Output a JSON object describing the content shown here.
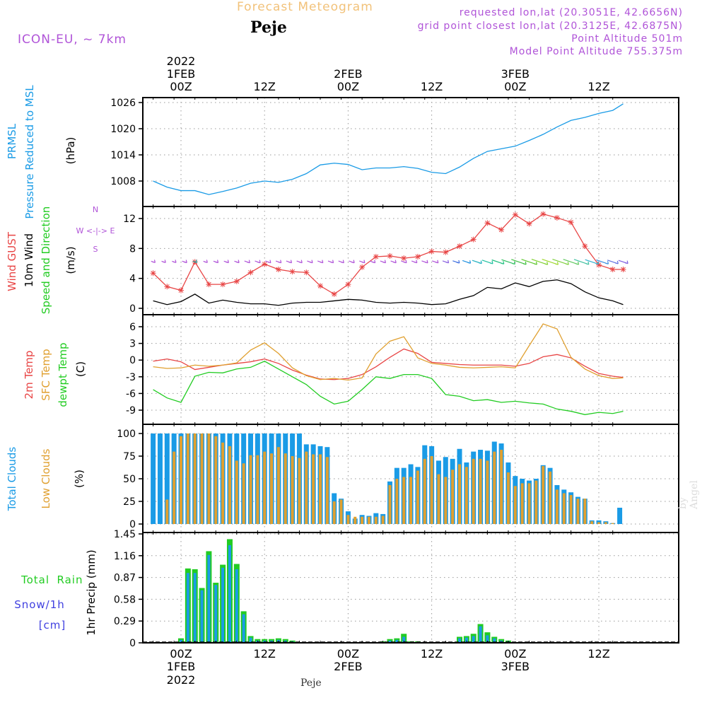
{
  "header": {
    "title": "Forecast Meteogram",
    "station": "Peje",
    "model": "ICON-EU, ~ 7km",
    "requested": "requested lon,lat (20.3051E, 42.6656N)",
    "gridpoint": "grid point closest lon,lat (20.3125E, 42.6875N)",
    "point_alt": "Point Altitude 501m",
    "model_alt": "Model Point Altitude 755.375m",
    "footer_station": "Peje",
    "watermark": "by Angel"
  },
  "time_axis": {
    "ticks": [
      "00Z",
      "12Z",
      "00Z",
      "12Z",
      "00Z",
      "12Z"
    ],
    "dates": [
      "1FEB",
      "2FEB",
      "3FEB"
    ],
    "year": "2022"
  },
  "colors": {
    "blue": "#1a9be6",
    "red": "#e84545",
    "orange": "#e0a030",
    "green": "#22cc22",
    "purple": "#b054d8",
    "snow": "#4040e0",
    "black": "#000000"
  },
  "chart_data": [
    {
      "type": "line",
      "id": "pressure",
      "labels": [
        "PRMSL",
        "Pressure Reduced to MSL",
        "(hPa)"
      ],
      "yticks": [
        1008,
        1014,
        1020,
        1026
      ],
      "ylim": [
        1003,
        1028
      ],
      "series": [
        {
          "color": "#1a9be6",
          "x": [
            -4,
            -2,
            0,
            2,
            4,
            6,
            8,
            10,
            12,
            14,
            16,
            18,
            20,
            22,
            24,
            26,
            28,
            30,
            32,
            34,
            36,
            38,
            40,
            42,
            44,
            46,
            48,
            50,
            52,
            54,
            56,
            58,
            60,
            62,
            63.5
          ],
          "values": [
            1008,
            1006.6,
            1005.8,
            1005.8,
            1004.9,
            1005.6,
            1006.4,
            1007.5,
            1008.0,
            1007.7,
            1008.4,
            1009.7,
            1011.7,
            1012.1,
            1011.8,
            1010.6,
            1011.0,
            1011.0,
            1011.3,
            1010.9,
            1010.0,
            1009.7,
            1011.2,
            1013.2,
            1014.8,
            1015.4,
            1016.0,
            1017.3,
            1018.7,
            1020.4,
            1021.9,
            1022.6,
            1023.5,
            1024.2,
            1025.7
          ]
        }
      ]
    },
    {
      "type": "line",
      "id": "wind",
      "labels": [
        "Wind GUST",
        "10m Wind",
        "Speed and Direction",
        "(m/s)"
      ],
      "compass": [
        "N",
        "W <-|-> E",
        "S"
      ],
      "yticks": [
        0,
        4,
        8,
        12
      ],
      "ylim": [
        -1,
        14
      ],
      "series": [
        {
          "name": "Wind GUST",
          "color": "#e84545",
          "marker": "star",
          "x": [
            -4,
            -2,
            0,
            2,
            4,
            6,
            8,
            10,
            12,
            14,
            16,
            18,
            20,
            22,
            24,
            26,
            28,
            30,
            32,
            34,
            36,
            38,
            40,
            42,
            44,
            46,
            48,
            50,
            52,
            54,
            56,
            58,
            60,
            62,
            63.5
          ],
          "values": [
            4.7,
            2.9,
            2.4,
            6.2,
            3.2,
            3.2,
            3.6,
            4.8,
            5.9,
            5.2,
            4.9,
            4.8,
            3.0,
            1.9,
            3.2,
            5.5,
            6.9,
            7.0,
            6.7,
            6.9,
            7.6,
            7.5,
            8.3,
            9.2,
            11.4,
            10.5,
            12.5,
            11.3,
            12.6,
            12.1,
            11.5,
            8.3,
            5.8,
            5.2,
            5.2
          ]
        },
        {
          "name": "10m Wind",
          "color": "#000000",
          "x": [
            -4,
            -2,
            0,
            2,
            4,
            6,
            8,
            10,
            12,
            14,
            16,
            18,
            20,
            22,
            24,
            26,
            28,
            30,
            32,
            34,
            36,
            38,
            40,
            42,
            44,
            46,
            48,
            50,
            52,
            54,
            56,
            58,
            60,
            62,
            63.5
          ],
          "values": [
            1.0,
            0.5,
            0.9,
            1.9,
            0.7,
            1.1,
            0.8,
            0.6,
            0.6,
            0.4,
            0.7,
            0.8,
            0.8,
            1.0,
            1.2,
            1.1,
            0.8,
            0.7,
            0.8,
            0.7,
            0.5,
            0.6,
            1.2,
            1.7,
            2.8,
            2.6,
            3.4,
            2.9,
            3.6,
            3.8,
            3.3,
            2.2,
            1.4,
            1.0,
            0.5
          ]
        }
      ],
      "barbs": {
        "x": [
          -4,
          -2.5,
          -1,
          0.5,
          2,
          3.5,
          5,
          6.5,
          8,
          9.5,
          11,
          12.5,
          14,
          15.5,
          17,
          18.5,
          20,
          21.5,
          23,
          24.5,
          26,
          27.5,
          29,
          30.5,
          32,
          33.5,
          35,
          36.5,
          38,
          39.5,
          41,
          42.5,
          44,
          45.5,
          47,
          48.5,
          50,
          51.5,
          53,
          54.5,
          56,
          57.5,
          59,
          60.5,
          62,
          63.5
        ],
        "length": [
          6,
          6,
          6,
          7,
          6,
          6,
          7,
          7,
          7,
          8,
          8,
          8,
          8,
          8,
          8,
          8,
          8,
          8,
          8,
          8,
          8,
          8,
          8,
          8,
          8,
          8,
          9,
          9,
          9,
          10,
          12,
          14,
          16,
          18,
          20,
          22,
          23,
          24,
          24,
          24,
          23,
          22,
          20,
          18,
          16,
          14
        ],
        "color": [
          "#b054d8",
          "#b054d8",
          "#b054d8",
          "#b054d8",
          "#20b0b0",
          "#b054d8",
          "#b054d8",
          "#b054d8",
          "#b054d8",
          "#b054d8",
          "#b054d8",
          "#b054d8",
          "#b054d8",
          "#b054d8",
          "#b054d8",
          "#b054d8",
          "#b054d8",
          "#b054d8",
          "#b054d8",
          "#b054d8",
          "#b054d8",
          "#b054d8",
          "#b054d8",
          "#b054d8",
          "#b054d8",
          "#b054d8",
          "#b054d8",
          "#b054d8",
          "#8a60e0",
          "#4070e0",
          "#2090e0",
          "#20b0c0",
          "#20c0a0",
          "#20c080",
          "#30c060",
          "#40c040",
          "#60c830",
          "#80d030",
          "#a0d830",
          "#80d040",
          "#60c860",
          "#40c0a0",
          "#30b0d0",
          "#4090e0",
          "#6070e0",
          "#8060e0"
        ]
      }
    },
    {
      "type": "line",
      "id": "temperature",
      "labels": [
        "2m Temp",
        "SFC Temp",
        "dewpt Temp",
        "(C)"
      ],
      "yticks": [
        -9,
        -6,
        -3,
        0,
        3,
        6
      ],
      "ylim": [
        -10.5,
        7.5
      ],
      "series": [
        {
          "name": "2m Temp",
          "color": "#e84545",
          "x": [
            -4,
            -2,
            0,
            2,
            4,
            6,
            8,
            10,
            12,
            14,
            16,
            18,
            20,
            22,
            24,
            26,
            28,
            30,
            32,
            34,
            36,
            38,
            40,
            42,
            44,
            46,
            48,
            50,
            52,
            54,
            56,
            58,
            60,
            62,
            63.5
          ],
          "values": [
            -0.2,
            0.2,
            -0.3,
            -1.7,
            -1.3,
            -0.9,
            -0.6,
            -0.3,
            0.2,
            -0.6,
            -1.8,
            -2.7,
            -3.4,
            -3.5,
            -3.3,
            -2.6,
            -1.2,
            0.5,
            2.0,
            1.2,
            -0.4,
            -0.6,
            -0.8,
            -0.9,
            -0.9,
            -0.9,
            -1.1,
            -0.6,
            0.6,
            1.0,
            0.4,
            -1.1,
            -2.4,
            -2.9,
            -3.1
          ]
        },
        {
          "name": "SFC Temp",
          "color": "#e0a030",
          "x": [
            -4,
            -2,
            0,
            2,
            4,
            6,
            8,
            10,
            12,
            14,
            16,
            18,
            20,
            22,
            24,
            26,
            28,
            30,
            32,
            34,
            36,
            38,
            40,
            42,
            44,
            46,
            48,
            50,
            52,
            54,
            56,
            58,
            60,
            62,
            63.5
          ],
          "values": [
            -1.2,
            -1.5,
            -1.4,
            -0.9,
            -1.1,
            -0.9,
            -0.5,
            1.8,
            3.1,
            1.2,
            -1.4,
            -2.8,
            -3.5,
            -3.3,
            -3.6,
            -3.2,
            1.1,
            3.4,
            4.2,
            0.4,
            -0.6,
            -0.9,
            -1.3,
            -1.4,
            -1.3,
            -1.2,
            -1.4,
            2.6,
            6.5,
            5.6,
            0.5,
            -1.6,
            -2.8,
            -3.3,
            -3.2
          ]
        },
        {
          "name": "dewpt Temp",
          "color": "#22cc22",
          "x": [
            -4,
            -2,
            0,
            2,
            4,
            6,
            8,
            10,
            12,
            14,
            16,
            18,
            20,
            22,
            24,
            26,
            28,
            30,
            32,
            34,
            36,
            38,
            40,
            42,
            44,
            46,
            48,
            50,
            52,
            54,
            56,
            58,
            60,
            62,
            63.5
          ],
          "values": [
            -5.3,
            -6.8,
            -7.6,
            -2.9,
            -2.2,
            -2.3,
            -1.6,
            -1.3,
            -0.2,
            -1.6,
            -3.0,
            -4.4,
            -6.5,
            -7.9,
            -7.4,
            -5.3,
            -3.0,
            -3.3,
            -2.6,
            -2.6,
            -3.3,
            -6.2,
            -6.5,
            -7.3,
            -7.1,
            -7.6,
            -7.4,
            -7.7,
            -7.9,
            -8.8,
            -9.2,
            -9.8,
            -9.4,
            -9.6,
            -9.2
          ]
        }
      ]
    },
    {
      "type": "bar",
      "id": "clouds",
      "labels": [
        "Total Clouds",
        "Low Clouds",
        "(%)"
      ],
      "yticks": [
        0,
        25,
        50,
        75,
        100
      ],
      "ylim": [
        0,
        100
      ],
      "x": [
        -4,
        -3,
        -2,
        -1,
        0,
        1,
        2,
        3,
        4,
        5,
        6,
        7,
        8,
        9,
        10,
        11,
        12,
        13,
        14,
        15,
        16,
        17,
        18,
        19,
        20,
        21,
        22,
        23,
        24,
        25,
        26,
        27,
        28,
        29,
        30,
        31,
        32,
        33,
        34,
        35,
        36,
        37,
        38,
        39,
        40,
        41,
        42,
        43,
        44,
        45,
        46,
        47,
        48,
        49,
        50,
        51,
        52,
        53,
        54,
        55,
        56,
        57,
        58,
        59,
        60,
        61,
        62,
        63
      ],
      "series": [
        {
          "name": "Total Clouds",
          "color": "#1a9be6",
          "values": [
            100,
            100,
            100,
            100,
            100,
            100,
            100,
            100,
            100,
            100,
            100,
            100,
            100,
            100,
            100,
            100,
            100,
            100,
            100,
            100,
            100,
            100,
            88,
            88,
            86,
            85,
            34,
            28,
            14,
            6,
            10,
            9,
            12,
            11,
            47,
            62,
            62,
            66,
            63,
            87,
            86,
            70,
            74,
            72,
            83,
            68,
            80,
            82,
            81,
            91,
            89,
            68,
            53,
            50,
            48,
            50,
            65,
            62,
            43,
            38,
            35,
            30,
            28,
            4,
            4,
            3,
            1,
            18
          ]
        },
        {
          "name": "Low Clouds",
          "color": "#e0a030",
          "values": [
            0,
            0,
            27,
            80,
            97,
            100,
            100,
            100,
            100,
            97,
            90,
            86,
            70,
            67,
            76,
            76,
            80,
            78,
            85,
            78,
            75,
            73,
            80,
            77,
            77,
            74,
            25,
            27,
            10,
            8,
            8,
            8,
            8,
            9,
            43,
            50,
            52,
            52,
            59,
            72,
            75,
            55,
            52,
            60,
            66,
            63,
            72,
            72,
            70,
            80,
            82,
            57,
            42,
            45,
            45,
            48,
            64,
            58,
            38,
            34,
            32,
            28,
            28,
            3,
            2,
            2,
            1,
            0
          ]
        }
      ]
    },
    {
      "type": "bar",
      "id": "precip",
      "labels": [
        "Total",
        "Rain",
        "Snow/1h",
        "[cm]",
        "1hr Precip (mm)"
      ],
      "yticks": [
        0,
        0.29,
        0.58,
        0.87,
        1.16,
        1.45
      ],
      "ylim": [
        0,
        1.45
      ],
      "x": [
        0,
        1,
        2,
        3,
        4,
        5,
        6,
        7,
        8,
        9,
        10,
        11,
        12,
        13,
        14,
        15,
        16,
        29,
        30,
        31,
        32,
        33,
        34,
        39,
        40,
        41,
        42,
        43,
        44,
        45,
        46,
        47,
        48
      ],
      "series": [
        {
          "name": "Total",
          "color": "#22cc22",
          "values": [
            0.06,
            0.99,
            0.98,
            0.73,
            1.22,
            0.8,
            1.04,
            1.38,
            1.05,
            0.42,
            0.09,
            0.05,
            0.05,
            0.05,
            0.06,
            0.05,
            0.03,
            0.02,
            0.05,
            0.06,
            0.12,
            0.02,
            0.02,
            0.01,
            0.08,
            0.09,
            0.12,
            0.25,
            0.14,
            0.08,
            0.05,
            0.03,
            0.01
          ]
        },
        {
          "name": "Snow/1h",
          "color": "#1a9be6",
          "values": [
            0.04,
            0.93,
            0.93,
            0.7,
            1.17,
            0.77,
            1.0,
            1.3,
            0.98,
            0.38,
            0.07,
            0.03,
            0.03,
            0.03,
            0.04,
            0.03,
            0.02,
            0.01,
            0.03,
            0.04,
            0.08,
            0.01,
            0.01,
            0.01,
            0.06,
            0.07,
            0.09,
            0.22,
            0.1,
            0.06,
            0.03,
            0.02,
            0.01
          ]
        }
      ]
    }
  ]
}
